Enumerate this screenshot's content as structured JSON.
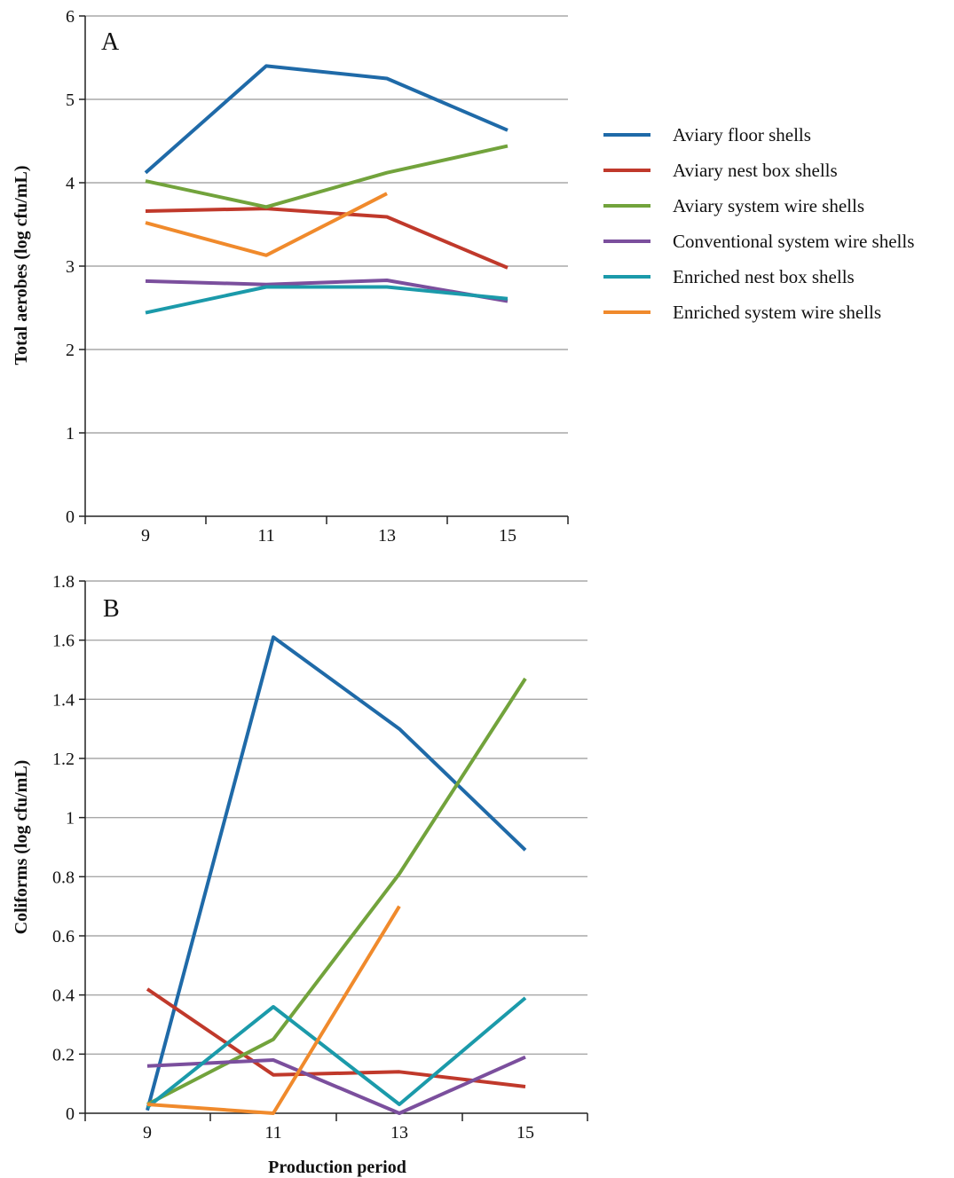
{
  "chart_data": [
    {
      "type": "line",
      "panel_label": "A",
      "xlabel": "",
      "ylabel": "Total aerobes (log cfu/mL)",
      "categories": [
        "9",
        "11",
        "13",
        "15"
      ],
      "ylim": [
        0,
        6
      ],
      "yticks": [
        "0",
        "1",
        "2",
        "3",
        "4",
        "5",
        "6"
      ],
      "grid": true,
      "series": [
        {
          "name": "Aviary floor shells",
          "color": "#1f6aa8",
          "values": [
            4.12,
            5.4,
            5.25,
            4.63
          ]
        },
        {
          "name": "Aviary nest box shells",
          "color": "#c0392b",
          "values": [
            3.66,
            3.69,
            3.59,
            2.98
          ]
        },
        {
          "name": "Aviary system wire shells",
          "color": "#72a33c",
          "values": [
            4.02,
            3.71,
            4.12,
            4.44
          ]
        },
        {
          "name": "Conventional system wire shells",
          "color": "#7b4f9d",
          "values": [
            2.82,
            2.78,
            2.83,
            2.58
          ]
        },
        {
          "name": "Enriched nest box shells",
          "color": "#1b9aaa",
          "values": [
            2.44,
            2.75,
            2.75,
            2.61
          ]
        },
        {
          "name": "Enriched system wire shells",
          "color": "#f08a2c",
          "values": [
            3.52,
            3.13,
            3.87,
            null
          ]
        }
      ]
    },
    {
      "type": "line",
      "panel_label": "B",
      "xlabel": "Production period",
      "ylabel": "Coliforms (log cfu/mL)",
      "categories": [
        "9",
        "11",
        "13",
        "15"
      ],
      "ylim": [
        0,
        1.8
      ],
      "yticks": [
        "0",
        "0.2",
        "0.4",
        "0.6",
        "0.8",
        "1",
        "1.2",
        "1.4",
        "1.6",
        "1.8"
      ],
      "grid": true,
      "series": [
        {
          "name": "Aviary floor shells",
          "color": "#1f6aa8",
          "values": [
            0.01,
            1.61,
            1.3,
            0.89
          ]
        },
        {
          "name": "Aviary nest box shells",
          "color": "#c0392b",
          "values": [
            0.42,
            0.13,
            0.14,
            0.09
          ]
        },
        {
          "name": "Aviary system wire shells",
          "color": "#72a33c",
          "values": [
            0.03,
            0.25,
            0.81,
            1.47
          ]
        },
        {
          "name": "Conventional system wire shells",
          "color": "#7b4f9d",
          "values": [
            0.16,
            0.18,
            0.0,
            0.19
          ]
        },
        {
          "name": "Enriched nest box shells",
          "color": "#1b9aaa",
          "values": [
            0.02,
            0.36,
            0.03,
            0.39
          ]
        },
        {
          "name": "Enriched system wire shells",
          "color": "#f08a2c",
          "values": [
            0.03,
            0.0,
            0.7,
            null
          ]
        }
      ]
    }
  ],
  "legend": {
    "placement": "right of panel A",
    "items": [
      {
        "label": "Aviary floor shells",
        "color": "#1f6aa8"
      },
      {
        "label": "Aviary nest box shells",
        "color": "#c0392b"
      },
      {
        "label": "Aviary system wire shells",
        "color": "#72a33c"
      },
      {
        "label": "Conventional system wire shells",
        "color": "#7b4f9d"
      },
      {
        "label": "Enriched nest box shells",
        "color": "#1b9aaa"
      },
      {
        "label": "Enriched system wire shells",
        "color": "#f08a2c"
      }
    ]
  }
}
